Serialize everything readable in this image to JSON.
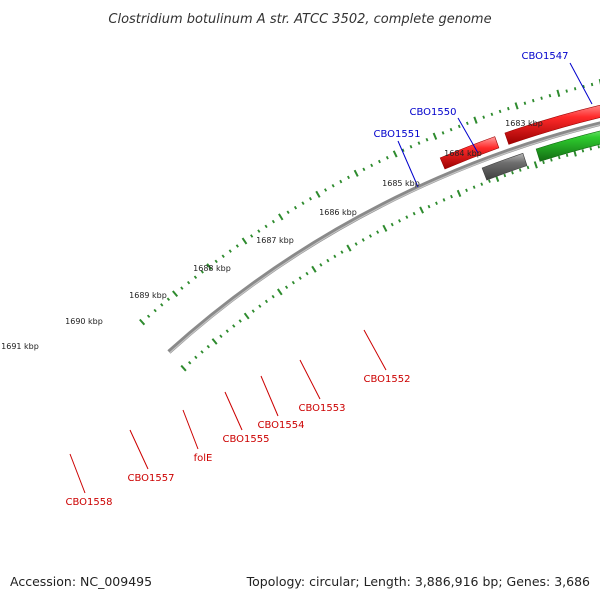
{
  "title": "Clostridium botulinum A str. ATCC 3502, complete genome",
  "footer": {
    "accession": "Accession: NC_009495",
    "summary": "Topology: circular; Length: 3,886,916 bp; Genes: 3,686"
  },
  "colors": {
    "backbone": "#8a8a8a",
    "tick": "#2e8b2e",
    "label_forward": "#0000cc",
    "label_reverse": "#cc0000"
  },
  "kbp_labels": [
    "1683 kbp",
    "1684 kbp",
    "1685 kbp",
    "1686 kbp",
    "1687 kbp",
    "1688 kbp",
    "1689 kbp",
    "1690 kbp",
    "1691 kbp"
  ],
  "gene_labels": [
    {
      "text": "CBO1547",
      "strand": "forward"
    },
    {
      "text": "CBO1550",
      "strand": "forward"
    },
    {
      "text": "CBO1551",
      "strand": "forward"
    },
    {
      "text": "CBO1552",
      "strand": "reverse"
    },
    {
      "text": "CBO1553",
      "strand": "reverse"
    },
    {
      "text": "CBO1554",
      "strand": "reverse"
    },
    {
      "text": "CBO1555",
      "strand": "reverse"
    },
    {
      "text": "folE",
      "strand": "reverse"
    },
    {
      "text": "CBO1557",
      "strand": "reverse"
    },
    {
      "text": "CBO1558",
      "strand": "reverse"
    }
  ]
}
